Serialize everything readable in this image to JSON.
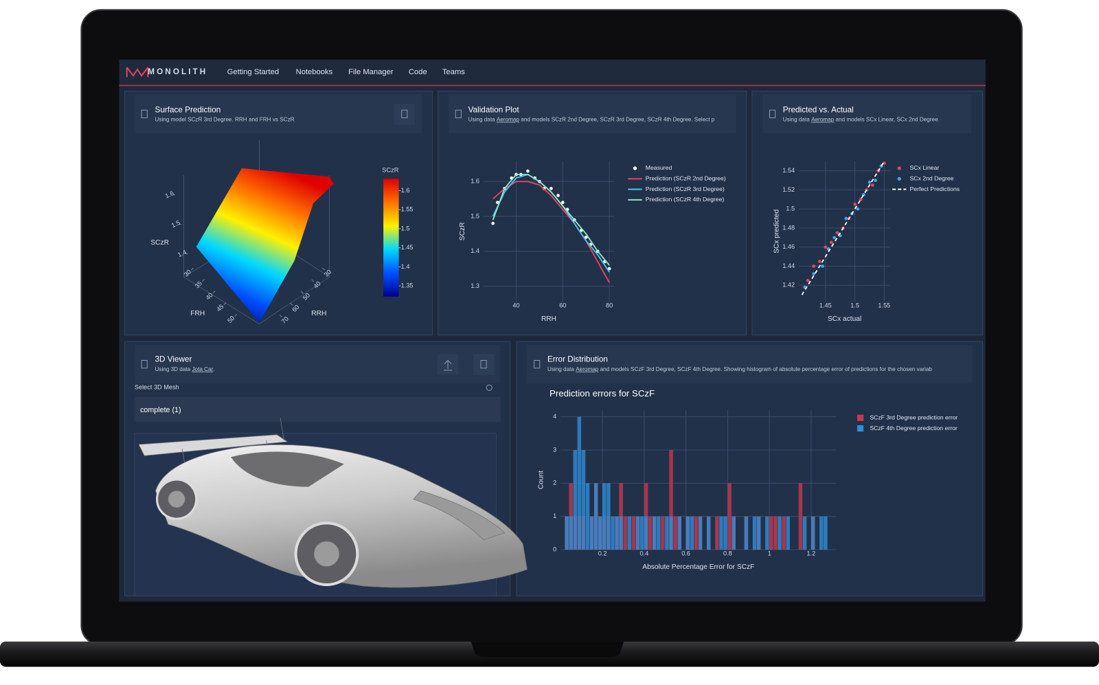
{
  "app": {
    "brand": "MONOLITH",
    "nav": [
      "Getting Started",
      "Notebooks",
      "File Manager",
      "Code",
      "Teams"
    ]
  },
  "viewer": {
    "title": "3D Viewer",
    "subtitle": "Using 3D data",
    "subtitle_link": "Jota Car",
    "subtitle_end": ".",
    "select_label": "Select 3D Mesh",
    "selected": "complete (1)"
  },
  "chart_data": [
    {
      "type": "surface",
      "title": "Surface Prediction",
      "subtitle": "Using model SCzR 3rd Degree. RRH and FRH vs SCzR",
      "xlabel": "FRH",
      "ylabel": "RRH",
      "zlabel": "SCzR",
      "xlim": [
        30,
        50
      ],
      "xticks": [
        30,
        35,
        40,
        45,
        50
      ],
      "ylim": [
        30,
        70
      ],
      "yticks": [
        30,
        40,
        50,
        60,
        70
      ],
      "zlim": [
        1.4,
        1.6
      ],
      "zticks": [
        1.4,
        1.5,
        1.6
      ],
      "colorbar_title": "SCzR",
      "colorbar_lim": [
        1.322,
        1.631
      ],
      "colorbar_ticks": [
        1.35,
        1.4,
        1.45,
        1.5,
        1.55,
        1.6
      ],
      "colorscale": [
        "#00008b",
        "#0050ff",
        "#00d8ff",
        "#fff000",
        "#ff7000",
        "#e00000"
      ]
    },
    {
      "type": "line",
      "title": "Validation Plot",
      "subtitle": "Using data",
      "subtitle_link": "Aeromap",
      "subtitle_rest": "and models SCzR 2nd Degree, SCzR 3rd Degree, SCzR 4th Degree. Select p",
      "xlabel": "RRH",
      "ylabel": "SCzR",
      "xlim": [
        26,
        82
      ],
      "xticks": [
        40,
        60,
        80
      ],
      "ylim": [
        1.256,
        1.658
      ],
      "yticks": [
        1.3,
        1.4,
        1.5,
        1.6
      ],
      "grid": true,
      "series": [
        {
          "name": "Measured",
          "type": "scatter",
          "color": "#ffffff",
          "x": [
            30,
            32,
            35,
            38,
            40,
            42,
            45,
            48,
            50,
            52,
            55,
            58,
            60,
            62,
            65,
            68,
            70,
            72,
            75,
            78,
            80
          ],
          "values": [
            1.48,
            1.54,
            1.58,
            1.61,
            1.62,
            1.62,
            1.63,
            1.61,
            1.6,
            1.58,
            1.58,
            1.56,
            1.54,
            1.52,
            1.49,
            1.46,
            1.44,
            1.42,
            1.4,
            1.37,
            1.35
          ]
        },
        {
          "name": "Prediction (SCzR 2nd Degree)",
          "type": "line",
          "color": "#e3475e",
          "x": [
            30,
            35,
            40,
            45,
            50,
            55,
            60,
            65,
            70,
            75,
            80
          ],
          "values": [
            1.55,
            1.58,
            1.6,
            1.6,
            1.59,
            1.56,
            1.52,
            1.48,
            1.43,
            1.37,
            1.31
          ]
        },
        {
          "name": "Prediction (SCzR 3rd Degree)",
          "type": "line",
          "color": "#4ec3f2",
          "x": [
            30,
            35,
            40,
            45,
            50,
            55,
            60,
            65,
            70,
            75,
            80
          ],
          "values": [
            1.5,
            1.57,
            1.61,
            1.62,
            1.6,
            1.57,
            1.53,
            1.48,
            1.43,
            1.39,
            1.34
          ]
        },
        {
          "name": "Prediction (SCzR 4th Degree)",
          "type": "line",
          "color": "#8ee6c4",
          "x": [
            30,
            35,
            40,
            45,
            50,
            55,
            60,
            65,
            70,
            75,
            80
          ],
          "values": [
            1.49,
            1.58,
            1.62,
            1.62,
            1.6,
            1.57,
            1.53,
            1.49,
            1.45,
            1.4,
            1.36
          ]
        }
      ]
    },
    {
      "type": "scatter",
      "title": "Predicted vs. Actual",
      "subtitle": "Using data",
      "subtitle_link": "Aeromap",
      "subtitle_rest": "and models SCx Linear, SCx 2nd Degree.",
      "xlabel": "SCx actual",
      "ylabel": "SCx predicted",
      "xlim": [
        1.405,
        1.56
      ],
      "xticks": [
        1.45,
        1.5,
        1.55
      ],
      "ylim": [
        1.403,
        1.55
      ],
      "yticks": [
        1.42,
        1.44,
        1.46,
        1.48,
        1.5,
        1.52,
        1.54
      ],
      "grid": true,
      "series": [
        {
          "name": "SCx Linear",
          "type": "scatter",
          "color": "#e3475e",
          "x": [
            1.42,
            1.43,
            1.44,
            1.45,
            1.46,
            1.47,
            1.48,
            1.49,
            1.5,
            1.51,
            1.52,
            1.53,
            1.54,
            1.55
          ],
          "values": [
            1.425,
            1.44,
            1.445,
            1.46,
            1.465,
            1.475,
            1.48,
            1.49,
            1.505,
            1.51,
            1.52,
            1.525,
            1.54,
            1.548
          ]
        },
        {
          "name": "SCx 2nd Degree",
          "type": "scatter",
          "color": "#3fa9f5",
          "x": [
            1.415,
            1.43,
            1.445,
            1.455,
            1.465,
            1.475,
            1.485,
            1.495,
            1.505,
            1.515,
            1.525,
            1.535,
            1.545
          ],
          "values": [
            1.418,
            1.432,
            1.44,
            1.458,
            1.47,
            1.472,
            1.49,
            1.495,
            1.5,
            1.515,
            1.528,
            1.53,
            1.545
          ]
        },
        {
          "name": "Perfect Predictions",
          "type": "line",
          "color": "#ffffff",
          "dash": true,
          "x": [
            1.41,
            1.55
          ],
          "values": [
            1.41,
            1.55
          ]
        }
      ]
    },
    {
      "type": "histogram",
      "title": "Error Distribution",
      "subtitle": "Using data",
      "subtitle_link": "Aeromap",
      "subtitle_rest": "and models SCzF 3rd Degree, SCzF 4th Degree. Showing histogram of absolute percentage error of predictions for the chosen variab",
      "plot_title": "Prediction errors for SCzF",
      "xlabel": "Absolute Percentage Error for SCzF",
      "ylabel": "Count",
      "xlim": [
        0,
        1.32
      ],
      "xticks": [
        0.2,
        0.4,
        0.6,
        0.8,
        1,
        1.2
      ],
      "ylim": [
        0,
        4.2
      ],
      "yticks": [
        0,
        1,
        2,
        3,
        4
      ],
      "grid": true,
      "bins": [
        0,
        0.02,
        0.04,
        0.06,
        0.08,
        0.1,
        0.12,
        0.14,
        0.16,
        0.18,
        0.2,
        0.22,
        0.24,
        0.26,
        0.28,
        0.3,
        0.32,
        0.34,
        0.36,
        0.38,
        0.4,
        0.42,
        0.44,
        0.46,
        0.48,
        0.5,
        0.52,
        0.54,
        0.56,
        0.58,
        0.6,
        0.62,
        0.64,
        0.66,
        0.68,
        0.7,
        0.72,
        0.74,
        0.76,
        0.78,
        0.8,
        0.82,
        0.84,
        0.86,
        0.88,
        0.9,
        0.92,
        0.94,
        0.96,
        0.98,
        1,
        1.02,
        1.04,
        1.06,
        1.08,
        1.1,
        1.12,
        1.14,
        1.16,
        1.18,
        1.2,
        1.22,
        1.24,
        1.26,
        1.28,
        1.3
      ],
      "series": [
        {
          "name": "SCzF 3rd Degree prediction error",
          "color": "#c8384f",
          "values": [
            0,
            1,
            2,
            1,
            1,
            1,
            0,
            1,
            2,
            1,
            1,
            1,
            0,
            1,
            2,
            1,
            0,
            1,
            1,
            0,
            2,
            1,
            1,
            0,
            1,
            0,
            3,
            1,
            1,
            0,
            1,
            0,
            1,
            1,
            0,
            1,
            0,
            1,
            0,
            0,
            2,
            1,
            0,
            0,
            1,
            0,
            0,
            1,
            0,
            0,
            1,
            1,
            0,
            1,
            0,
            0,
            0,
            2,
            0,
            0,
            1,
            0,
            0,
            0,
            0
          ]
        },
        {
          "name": "SCzF 4th Degree prediction error",
          "color": "#2f8fd8",
          "values": [
            0,
            1,
            1,
            3,
            4,
            3,
            2,
            1,
            2,
            1,
            2,
            2,
            1,
            1,
            1,
            0,
            1,
            0,
            1,
            1,
            1,
            0,
            1,
            1,
            0,
            1,
            1,
            0,
            1,
            0,
            1,
            1,
            0,
            1,
            0,
            1,
            0,
            0,
            1,
            1,
            0,
            1,
            0,
            0,
            1,
            0,
            1,
            1,
            0,
            1,
            0,
            0,
            1,
            0,
            1,
            0,
            0,
            0,
            1,
            0,
            1,
            0,
            1,
            1,
            0
          ]
        }
      ]
    }
  ]
}
